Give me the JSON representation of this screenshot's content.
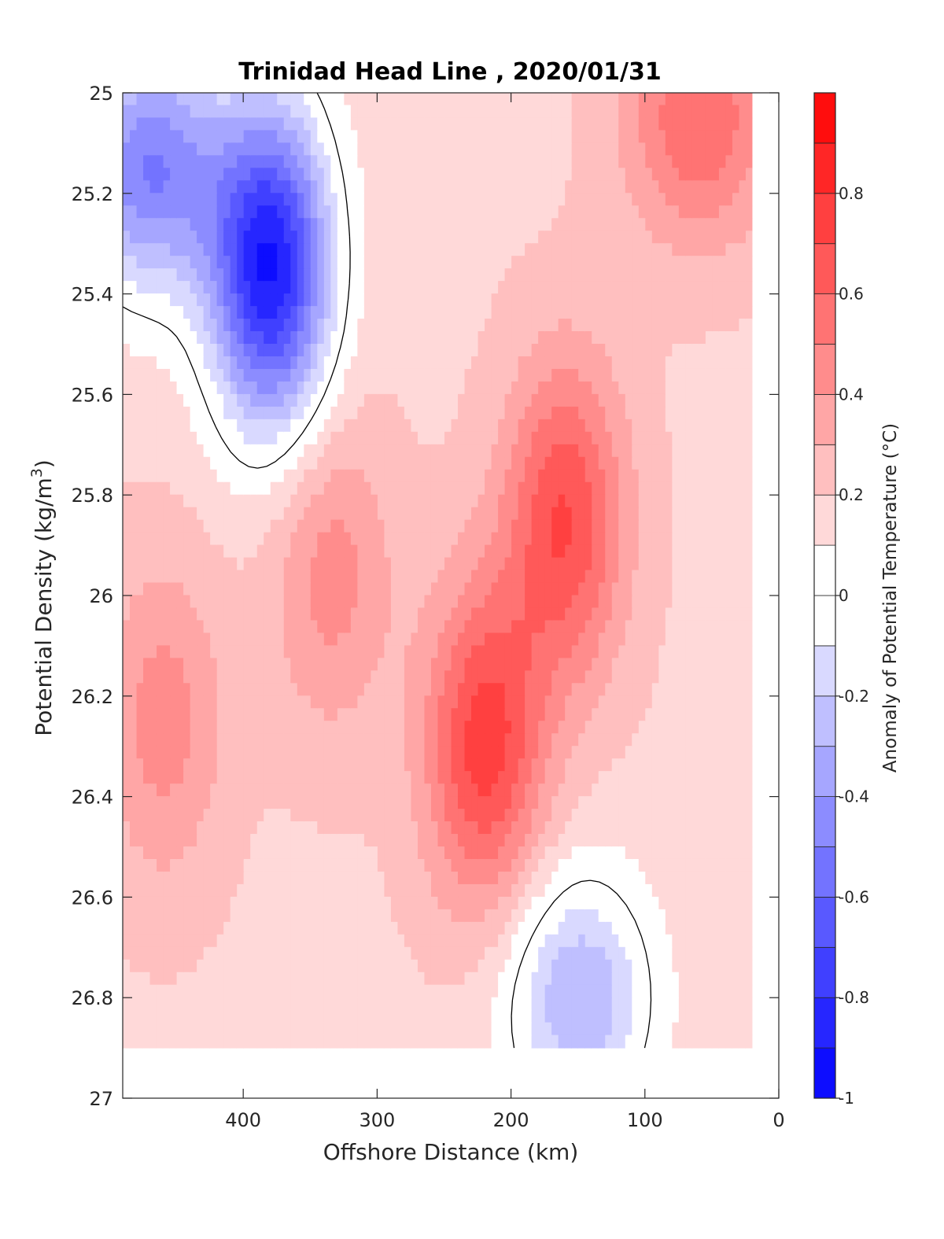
{
  "chart_data": {
    "type": "heatmap",
    "title": "Trinidad Head Line , 2020/01/31",
    "xlabel": "Offshore Distance (km)",
    "ylabel_main": "Potential Density (kg/m",
    "ylabel_sup": "3",
    "ylabel_close": ")",
    "colorbar_label": "Anomaly of Potential Temperature (°C)",
    "x_reversed": true,
    "xlim": [
      0,
      490
    ],
    "ylim": [
      25,
      27
    ],
    "y_reversed": true,
    "x_ticks": [
      400,
      300,
      200,
      100,
      0
    ],
    "x_tick_labels": [
      "400",
      "300",
      "200",
      "100",
      "0"
    ],
    "y_ticks": [
      25,
      25.2,
      25.4,
      25.6,
      25.8,
      26,
      26.2,
      26.4,
      26.6,
      26.8,
      27
    ],
    "y_tick_labels": [
      "25",
      "25.2",
      "25.4",
      "25.6",
      "25.8",
      "26",
      "26.2",
      "26.4",
      "26.6",
      "26.8",
      "27"
    ],
    "colorbar_range": [
      -1,
      1
    ],
    "colorbar_ticks": [
      -1,
      -0.8,
      -0.6,
      -0.4,
      -0.2,
      0,
      0.2,
      0.4,
      0.6,
      0.8
    ],
    "colorbar_tick_labels": [
      "-1",
      "-0.8",
      "-0.6",
      "-0.4",
      "-0.2",
      "0",
      "0.2",
      "0.4",
      "0.6",
      "0.8"
    ],
    "contour_levels_step": 0.1,
    "zero_contour_drawn": true,
    "data_extent": {
      "x": [
        20,
        490
      ],
      "y": [
        25,
        26.9
      ]
    },
    "colormap": {
      "negative": "#0000ff",
      "zero": "#ffffff",
      "positive": "#ff0000"
    },
    "features": [
      {
        "kind": "cold core",
        "x": 380,
        "y": 25.35,
        "value": -0.9
      },
      {
        "kind": "cold patch",
        "x": 470,
        "y": 25.15,
        "value": -0.5
      },
      {
        "kind": "cold pool",
        "x": 150,
        "y": 26.8,
        "value": -0.3
      },
      {
        "kind": "warm core",
        "x": 220,
        "y": 26.3,
        "value": 0.75
      },
      {
        "kind": "warm core",
        "x": 160,
        "y": 25.85,
        "value": 0.7
      },
      {
        "kind": "warm core",
        "x": 335,
        "y": 25.95,
        "value": 0.45
      },
      {
        "kind": "warm core",
        "x": 460,
        "y": 26.25,
        "value": 0.45
      },
      {
        "kind": "warm patch",
        "x": 60,
        "y": 25.05,
        "value": 0.6
      }
    ]
  }
}
